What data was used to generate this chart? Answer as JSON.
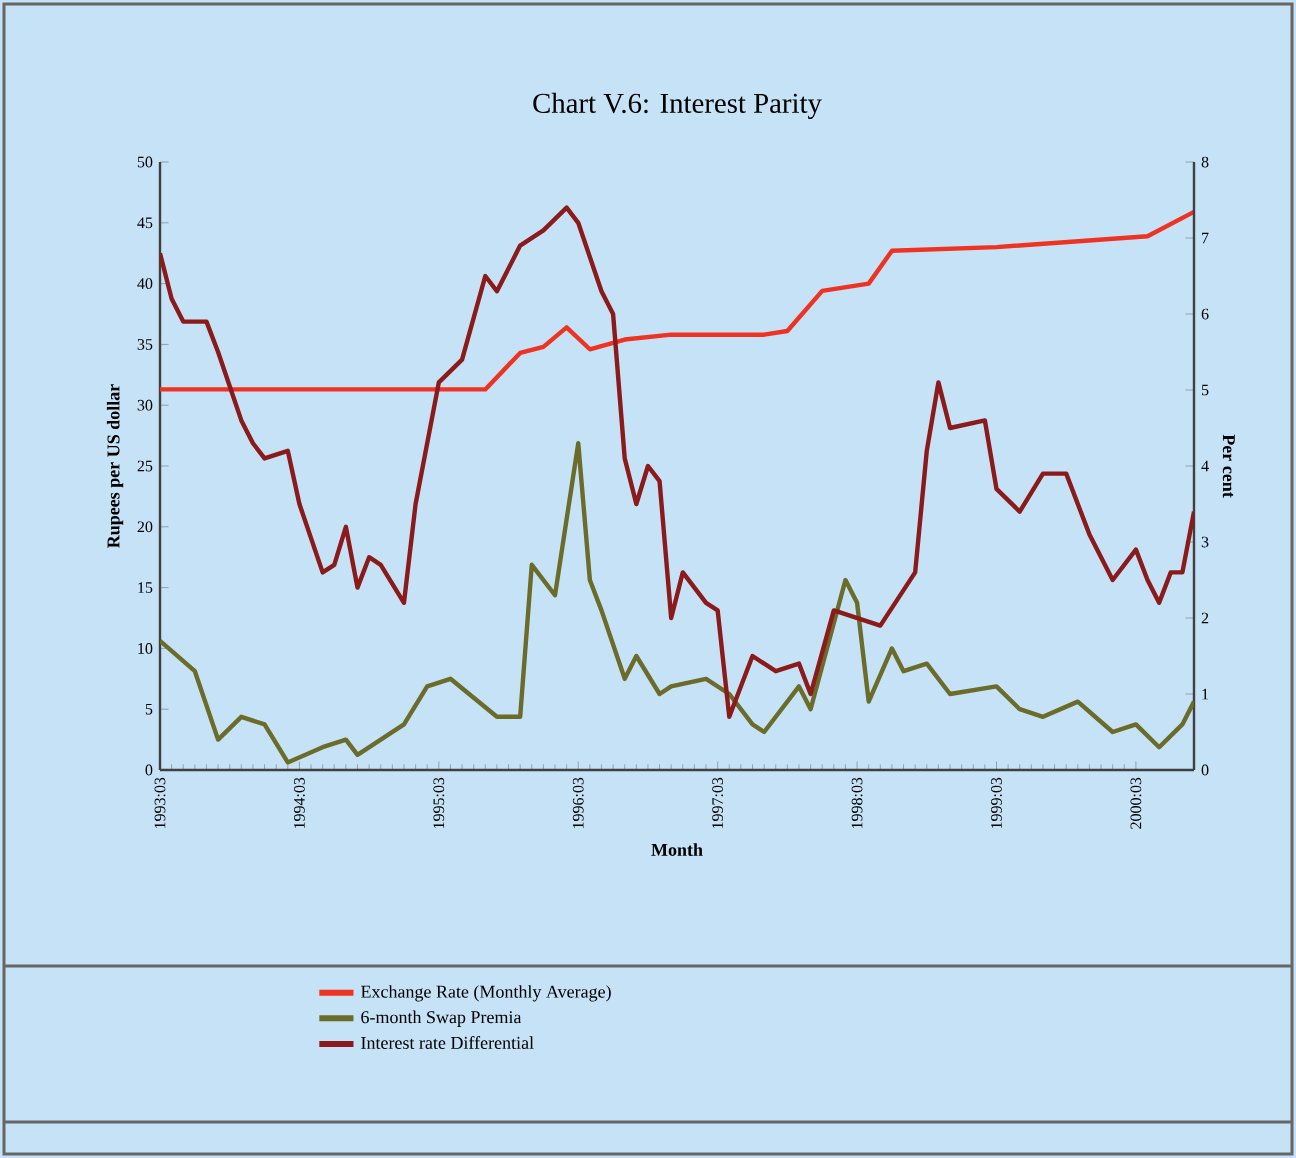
{
  "chart_data": {
    "type": "line",
    "title": "Chart V.6: Interest Parity",
    "xlabel": "Month",
    "ylabel": "Rupees per US dollar",
    "y2label": "Per cent",
    "xlim": [
      "1993-03",
      "2000-08"
    ],
    "xticks": [
      {
        "value": "1993-03",
        "label": "1993:03"
      },
      {
        "value": "1994-03",
        "label": "1994:03"
      },
      {
        "value": "1995-03",
        "label": "1995:03"
      },
      {
        "value": "1996-03",
        "label": "1996:03"
      },
      {
        "value": "1997-03",
        "label": "1997:03"
      },
      {
        "value": "1998-03",
        "label": "1998:03"
      },
      {
        "value": "1999-03",
        "label": "1999:03"
      },
      {
        "value": "2000-03",
        "label": "2000:03"
      }
    ],
    "ylim": [
      0,
      50
    ],
    "yticks": [
      0,
      5,
      10,
      15,
      20,
      25,
      30,
      35,
      40,
      45,
      50
    ],
    "y2lim": [
      0,
      8
    ],
    "y2ticks": [
      0,
      1,
      2,
      3,
      4,
      5,
      6,
      7,
      8
    ],
    "legend": "bottom",
    "grid": false,
    "line_style": "solid",
    "series": [
      {
        "name": "Exchange Rate (Monthly Average)",
        "color": "#ee3322",
        "x": [
          "1993-03",
          "1995-07",
          "1995-10",
          "1995-12",
          "1996-02",
          "1996-04",
          "1996-07",
          "1996-11",
          "1997-07",
          "1997-09",
          "1997-12",
          "1998-04",
          "1998-06",
          "1999-03",
          "2000-04",
          "2000-08"
        ],
        "values": [
          31.3,
          31.3,
          34.3,
          34.8,
          36.4,
          34.6,
          35.4,
          35.8,
          35.8,
          36.1,
          39.4,
          40.0,
          42.7,
          43.0,
          43.9,
          45.9
        ]
      },
      {
        "name": "6-month Swap Premia",
        "color": "#6b6b2a",
        "axis": "y2",
        "x": [
          "1993-03",
          "1993-06",
          "1993-08",
          "1993-10",
          "1993-12",
          "1994-02",
          "1994-05",
          "1994-07",
          "1994-08",
          "1994-12",
          "1995-02",
          "1995-04",
          "1995-08",
          "1995-10",
          "1995-11",
          "1996-01",
          "1996-03",
          "1996-04",
          "1996-05",
          "1996-07",
          "1996-08",
          "1996-10",
          "1996-11",
          "1997-02",
          "1997-04",
          "1997-06",
          "1997-07",
          "1997-10",
          "1997-11",
          "1998-02",
          "1998-03",
          "1998-04",
          "1998-06",
          "1998-07",
          "1998-09",
          "1998-11",
          "1999-03",
          "1999-05",
          "1999-07",
          "1999-10",
          "2000-01",
          "2000-03",
          "2000-05",
          "2000-07",
          "2000-08"
        ],
        "values": [
          1.7,
          1.3,
          0.4,
          0.7,
          0.6,
          0.1,
          0.3,
          0.4,
          0.2,
          0.6,
          1.1,
          1.2,
          0.7,
          0.7,
          2.7,
          2.3,
          4.3,
          2.5,
          2.1,
          1.2,
          1.5,
          1.0,
          1.1,
          1.2,
          1.0,
          0.6,
          0.5,
          1.1,
          0.8,
          2.5,
          2.2,
          0.9,
          1.6,
          1.3,
          1.4,
          1.0,
          1.1,
          0.8,
          0.7,
          0.9,
          0.5,
          0.6,
          0.3,
          0.6,
          0.9
        ]
      },
      {
        "name": "Interest rate Differential",
        "color": "#8b1a1a",
        "axis": "y2",
        "x": [
          "1993-03",
          "1993-04",
          "1993-05",
          "1993-07",
          "1993-08",
          "1993-10",
          "1993-11",
          "1993-12",
          "1994-02",
          "1994-03",
          "1994-05",
          "1994-06",
          "1994-07",
          "1994-08",
          "1994-09",
          "1994-10",
          "1994-12",
          "1995-01",
          "1995-03",
          "1995-05",
          "1995-07",
          "1995-08",
          "1995-10",
          "1995-12",
          "1996-02",
          "1996-03",
          "1996-05",
          "1996-06",
          "1996-07",
          "1996-08",
          "1996-09",
          "1996-10",
          "1996-11",
          "1996-12",
          "1997-02",
          "1997-03",
          "1997-04",
          "1997-06",
          "1997-08",
          "1997-10",
          "1997-11",
          "1998-01",
          "1998-03",
          "1998-05",
          "1998-08",
          "1998-09",
          "1998-10",
          "1998-11",
          "1999-02",
          "1999-03",
          "1999-05",
          "1999-07",
          "1999-09",
          "1999-11",
          "2000-01",
          "2000-03",
          "2000-04",
          "2000-05",
          "2000-06",
          "2000-07",
          "2000-08"
        ],
        "values": [
          6.8,
          6.2,
          5.9,
          5.9,
          5.5,
          4.6,
          4.3,
          4.1,
          4.2,
          3.5,
          2.6,
          2.7,
          3.2,
          2.4,
          2.8,
          2.7,
          2.2,
          3.5,
          5.1,
          5.4,
          6.5,
          6.3,
          6.9,
          7.1,
          7.4,
          7.2,
          6.3,
          6.0,
          4.1,
          3.5,
          4.0,
          3.8,
          2.0,
          2.6,
          2.2,
          2.1,
          0.7,
          1.5,
          1.3,
          1.4,
          1.0,
          2.1,
          2.0,
          1.9,
          2.6,
          4.2,
          5.1,
          4.5,
          4.6,
          3.7,
          3.4,
          3.9,
          3.9,
          3.1,
          2.5,
          2.9,
          2.5,
          2.2,
          2.6,
          2.6,
          3.4
        ]
      }
    ]
  }
}
